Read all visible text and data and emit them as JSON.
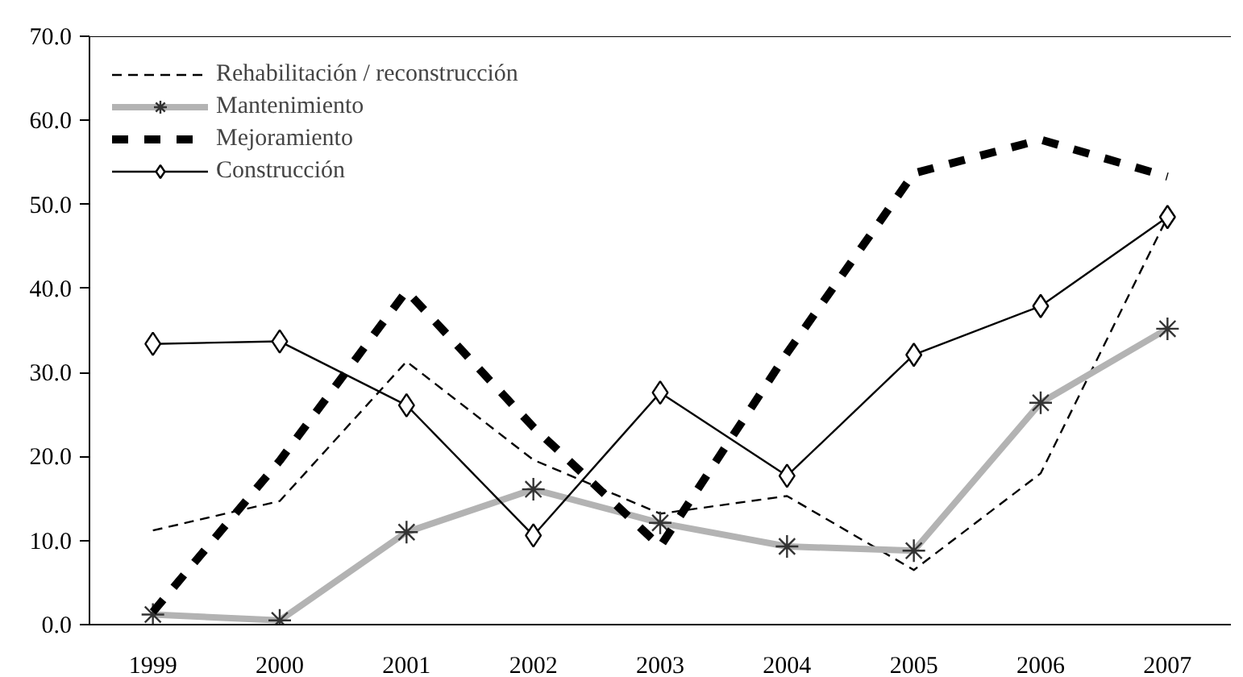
{
  "chart_data": {
    "type": "line",
    "categories": [
      "1999",
      "2000",
      "2001",
      "2002",
      "2003",
      "2004",
      "2005",
      "2006",
      "2007"
    ],
    "series": [
      {
        "name": "Rehabilitación / reconstrucción",
        "color": "#000000",
        "line_style": "dashed",
        "marker": "none",
        "values": [
          11.2,
          14.7,
          31.3,
          19.6,
          13.2,
          15.3,
          6.5,
          18.0,
          48.5
        ]
      },
      {
        "name": "Mantenimiento",
        "color": "#b3b3b3",
        "line_style": "solid",
        "marker": "cross",
        "values": [
          1.2,
          0.5,
          11.0,
          16.1,
          12.1,
          9.3,
          8.8,
          26.4,
          35.2
        ]
      },
      {
        "name": "Mejoramiento",
        "color": "#000000",
        "line_style": "dashed",
        "marker": "none",
        "values": [
          1.5,
          19.5,
          39.7,
          23.5,
          9.3,
          32.3,
          53.7,
          57.7,
          53.3
        ]
      },
      {
        "name": "Construcción",
        "color": "#000000",
        "line_style": "solid",
        "marker": "diamond",
        "values": [
          33.4,
          33.7,
          26.1,
          10.6,
          27.6,
          17.7,
          32.1,
          37.9,
          48.5
        ]
      }
    ],
    "ylim": [
      0,
      70
    ],
    "yticks": [
      {
        "value": 0,
        "label": "0.0"
      },
      {
        "value": 10,
        "label": "10.0"
      },
      {
        "value": 20,
        "label": "20.0"
      },
      {
        "value": 30,
        "label": "30.0"
      },
      {
        "value": 40,
        "label": "40.0"
      },
      {
        "value": 50,
        "label": "50.0"
      },
      {
        "value": 60,
        "label": "60.0"
      },
      {
        "value": 70,
        "label": "70.0"
      }
    ],
    "grid": false,
    "legend": "top left"
  }
}
